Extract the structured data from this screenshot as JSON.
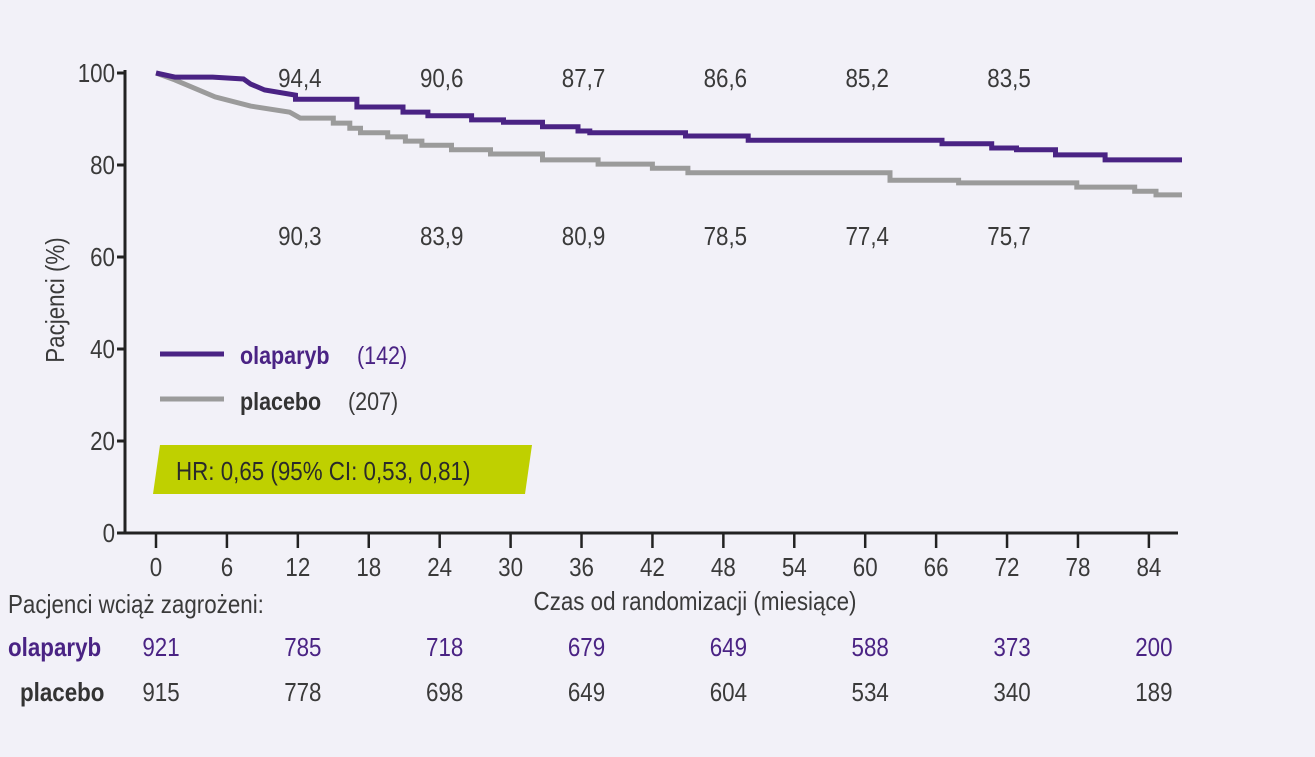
{
  "colors": {
    "background": "#F2F1F8",
    "olaparib": "#4A2384",
    "placebo": "#9B9B9B",
    "axis": "#222222",
    "text": "#3a3a3a",
    "hr_box": "#BFD000"
  },
  "chart_data": {
    "type": "line",
    "subtype": "kaplan-meier step",
    "xlabel": "Czas od randomizacji (miesiące)",
    "ylabel": "Pacjenci (%)",
    "xlim": [
      0,
      86.8
    ],
    "ylim": [
      0,
      100
    ],
    "xticks": [
      0,
      6,
      12,
      18,
      24,
      30,
      36,
      42,
      48,
      54,
      60,
      66,
      72,
      78,
      84
    ],
    "yticks": [
      0,
      20,
      40,
      60,
      80,
      100
    ],
    "grid": false,
    "legend_position": "lower-left",
    "series": [
      {
        "name": "olaparyb",
        "n_label": "(142)",
        "points": [
          [
            0,
            100
          ],
          [
            1.6,
            99.1
          ],
          [
            4.8,
            99.1
          ],
          [
            7.4,
            98.7
          ],
          [
            8.0,
            97.6
          ],
          [
            9.2,
            96.3
          ],
          [
            11.8,
            95.2
          ],
          [
            11.8,
            94.3
          ],
          [
            17.0,
            94.3
          ],
          [
            17.0,
            92.6
          ],
          [
            20.9,
            92.6
          ],
          [
            20.9,
            91.5
          ],
          [
            23.0,
            91.5
          ],
          [
            23.0,
            90.7
          ],
          [
            26.7,
            90.7
          ],
          [
            26.7,
            89.8
          ],
          [
            29.4,
            89.8
          ],
          [
            29.4,
            89.3
          ],
          [
            32.7,
            89.3
          ],
          [
            32.7,
            88.3
          ],
          [
            35.7,
            88.3
          ],
          [
            35.7,
            87.4
          ],
          [
            36.7,
            87.4
          ],
          [
            36.7,
            87.0
          ],
          [
            44.8,
            87.0
          ],
          [
            44.8,
            86.3
          ],
          [
            50.1,
            86.3
          ],
          [
            50.1,
            85.4
          ],
          [
            66.5,
            85.4
          ],
          [
            66.5,
            84.6
          ],
          [
            70.7,
            84.6
          ],
          [
            70.7,
            83.7
          ],
          [
            72.8,
            83.7
          ],
          [
            72.8,
            83.3
          ],
          [
            76.1,
            83.3
          ],
          [
            76.1,
            82.2
          ],
          [
            80.3,
            82.2
          ],
          [
            80.3,
            81.1
          ],
          [
            86.8,
            81.1
          ]
        ],
        "annotations": [
          {
            "x": 12,
            "label": "94,4"
          },
          {
            "x": 24,
            "label": "90,6"
          },
          {
            "x": 36,
            "label": "87,7"
          },
          {
            "x": 48,
            "label": "86,6"
          },
          {
            "x": 60,
            "label": "85,2"
          },
          {
            "x": 72,
            "label": "83,5"
          }
        ]
      },
      {
        "name": "placebo",
        "n_label": "(207)",
        "points": [
          [
            0,
            100
          ],
          [
            1.6,
            98.5
          ],
          [
            5.0,
            94.8
          ],
          [
            8.0,
            92.8
          ],
          [
            11.3,
            91.5
          ],
          [
            12.2,
            90.2
          ],
          [
            15.0,
            90.2
          ],
          [
            15.0,
            89.1
          ],
          [
            16.4,
            89.1
          ],
          [
            16.4,
            88.0
          ],
          [
            17.3,
            88.0
          ],
          [
            17.3,
            87.0
          ],
          [
            19.6,
            87.0
          ],
          [
            19.6,
            86.1
          ],
          [
            21.1,
            86.1
          ],
          [
            21.1,
            85.2
          ],
          [
            22.5,
            85.2
          ],
          [
            22.5,
            84.3
          ],
          [
            25.0,
            84.3
          ],
          [
            25.0,
            83.3
          ],
          [
            28.3,
            83.3
          ],
          [
            28.3,
            82.4
          ],
          [
            32.7,
            82.4
          ],
          [
            32.7,
            81.1
          ],
          [
            37.4,
            81.1
          ],
          [
            37.4,
            80.2
          ],
          [
            42.0,
            80.2
          ],
          [
            42.0,
            79.3
          ],
          [
            45.0,
            79.3
          ],
          [
            45.0,
            78.3
          ],
          [
            62.1,
            78.3
          ],
          [
            62.1,
            76.7
          ],
          [
            67.9,
            76.7
          ],
          [
            67.9,
            76.1
          ],
          [
            77.9,
            76.1
          ],
          [
            77.9,
            75.2
          ],
          [
            82.8,
            75.2
          ],
          [
            82.8,
            74.3
          ],
          [
            84.6,
            74.3
          ],
          [
            84.6,
            73.5
          ],
          [
            86.8,
            73.5
          ]
        ],
        "annotations": [
          {
            "x": 12,
            "label": "90,3"
          },
          {
            "x": 24,
            "label": "83,9"
          },
          {
            "x": 36,
            "label": "80,9"
          },
          {
            "x": 48,
            "label": "78,5"
          },
          {
            "x": 60,
            "label": "77,4"
          },
          {
            "x": 72,
            "label": "75,7"
          }
        ]
      }
    ],
    "hr_text": "HR: 0,65 (95% CI: 0,53, 0,81)",
    "risk_table": {
      "title": "Pacjenci wciąż zagrożeni:",
      "x": [
        0,
        12,
        24,
        36,
        48,
        60,
        72,
        84
      ],
      "rows": [
        {
          "label": "olaparyb",
          "values": [
            "921",
            "785",
            "718",
            "679",
            "649",
            "588",
            "373",
            "200"
          ]
        },
        {
          "label": "placebo",
          "values": [
            "915",
            "778",
            "698",
            "649",
            "604",
            "534",
            "340",
            "189"
          ]
        }
      ]
    }
  }
}
